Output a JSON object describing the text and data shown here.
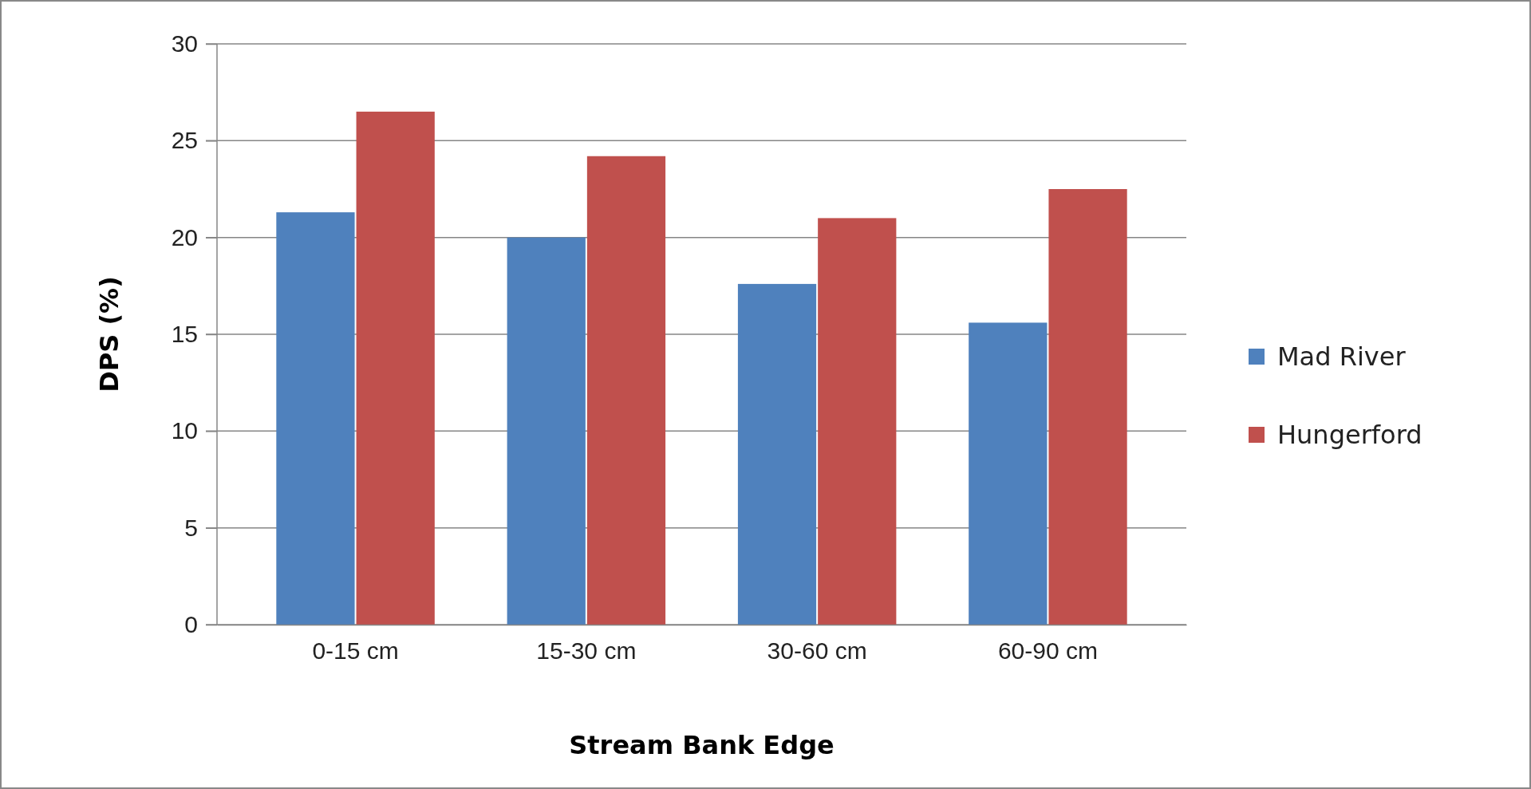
{
  "chart_data": {
    "type": "bar",
    "xlabel": "Stream Bank Edge",
    "ylabel": "DPS  (%)",
    "categories": [
      "0-15 cm",
      "15-30 cm",
      "30-60 cm",
      "60-90 cm"
    ],
    "series": [
      {
        "name": "Mad River",
        "color": "#4f81bd",
        "values": [
          21.3,
          20.0,
          17.6,
          15.6
        ]
      },
      {
        "name": "Hungerford",
        "color": "#c0504d",
        "values": [
          26.5,
          24.2,
          21.0,
          22.5
        ]
      }
    ],
    "ylim": [
      0,
      30
    ],
    "yticks": [
      0,
      5,
      10,
      15,
      20,
      25,
      30
    ],
    "grid": "y",
    "legend": "right"
  }
}
